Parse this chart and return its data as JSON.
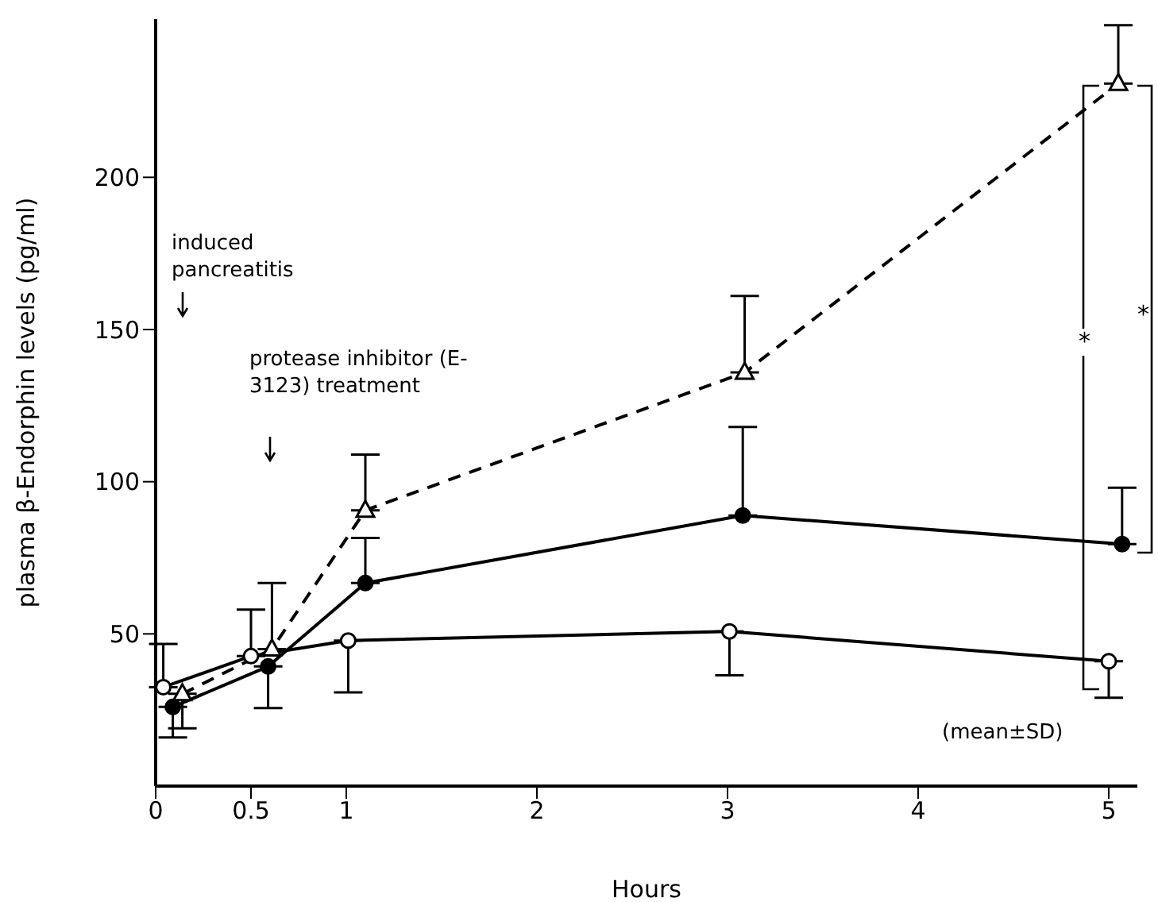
{
  "chart_data": {
    "type": "line",
    "xlabel": "Hours",
    "ylabel": "plasma β-Endorphin levels (pg/ml)",
    "xlim": [
      0,
      5.15
    ],
    "xticks": [
      0,
      0.5,
      1,
      2,
      3,
      4,
      5
    ],
    "ylim": [
      0,
      252
    ],
    "yticks": [
      50,
      100,
      150,
      200
    ],
    "grid": false,
    "legend": false,
    "series": [
      {
        "x": [
          0.04,
          0.5,
          1.01,
          3.01,
          5.0
        ],
        "values": [
          32.5,
          42.7,
          47.8,
          50.8,
          41
        ],
        "errors": [
          [
            32.5,
            46.7
          ],
          [
            42.7,
            58
          ],
          [
            30.8,
            47.8
          ],
          [
            36.4,
            50.8
          ],
          [
            29,
            41
          ]
        ],
        "color": "#000000",
        "colors": [
          "#ffffff",
          "#ffffff",
          "#ffffff",
          "#ffffff",
          "#ffffff"
        ],
        "marker": "circle",
        "line_style": "solid"
      },
      {
        "x": [
          0.09,
          0.59,
          1.1,
          3.08,
          5.07
        ],
        "values": [
          26,
          39.3,
          66.7,
          88.9,
          79.5
        ],
        "errors": [
          [
            16,
            26
          ],
          [
            25.6,
            39.3
          ],
          [
            66.7,
            81.5
          ],
          [
            88.9,
            118
          ],
          [
            79.5,
            98
          ]
        ],
        "color": "#000000",
        "colors": [
          "#000000",
          "#000000",
          "#000000",
          "#000000",
          "#000000"
        ],
        "marker": "circle",
        "line_style": "solid"
      },
      {
        "x": [
          0.14,
          0.61,
          1.1,
          3.09,
          5.05
        ],
        "values": [
          30.3,
          45,
          90.6,
          135.9,
          230.8
        ],
        "errors": [
          [
            19,
            30.3
          ],
          [
            45,
            66.7
          ],
          [
            90.6,
            108.9
          ],
          [
            135.9,
            161
          ],
          [
            230.8,
            250
          ]
        ],
        "color": "#000000",
        "colors": [
          "#ffffff",
          "#ffffff",
          "#ffffff",
          "#ffffff",
          "#ffffff"
        ],
        "marker": "triangle",
        "line_style": "dashed"
      }
    ],
    "annotations": [
      "induced pancreatitis",
      "protease inhibitor (E-3123) treatment",
      "(mean±SD)",
      "*",
      "*"
    ]
  }
}
